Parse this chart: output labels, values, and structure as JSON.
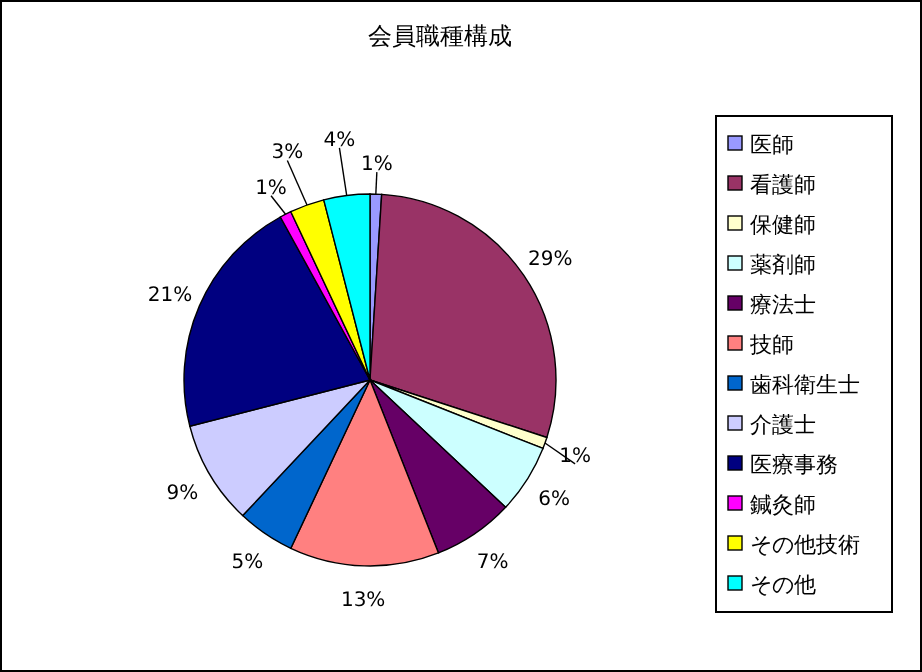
{
  "chart_data": {
    "type": "pie",
    "title": "会員職種構成",
    "categories": [
      "医師",
      "看護師",
      "保健師",
      "薬剤師",
      "療法士",
      "技師",
      "歯科衛生士",
      "介護士",
      "医療事務",
      "鍼灸師",
      "その他技術",
      "その他"
    ],
    "values": [
      1,
      29,
      1,
      6,
      7,
      13,
      5,
      9,
      21,
      1,
      3,
      4
    ],
    "colors": [
      "#9999ff",
      "#993366",
      "#ffffcc",
      "#ccffff",
      "#660066",
      "#ff8080",
      "#0066cc",
      "#ccccff",
      "#000080",
      "#ff00ff",
      "#ffff00",
      "#00ffff"
    ],
    "value_labels": [
      "1%",
      "29%",
      "1%",
      "6%",
      "7%",
      "13%",
      "5%",
      "9%",
      "21%",
      "1%",
      "3%",
      "4%"
    ],
    "legend": "right"
  }
}
